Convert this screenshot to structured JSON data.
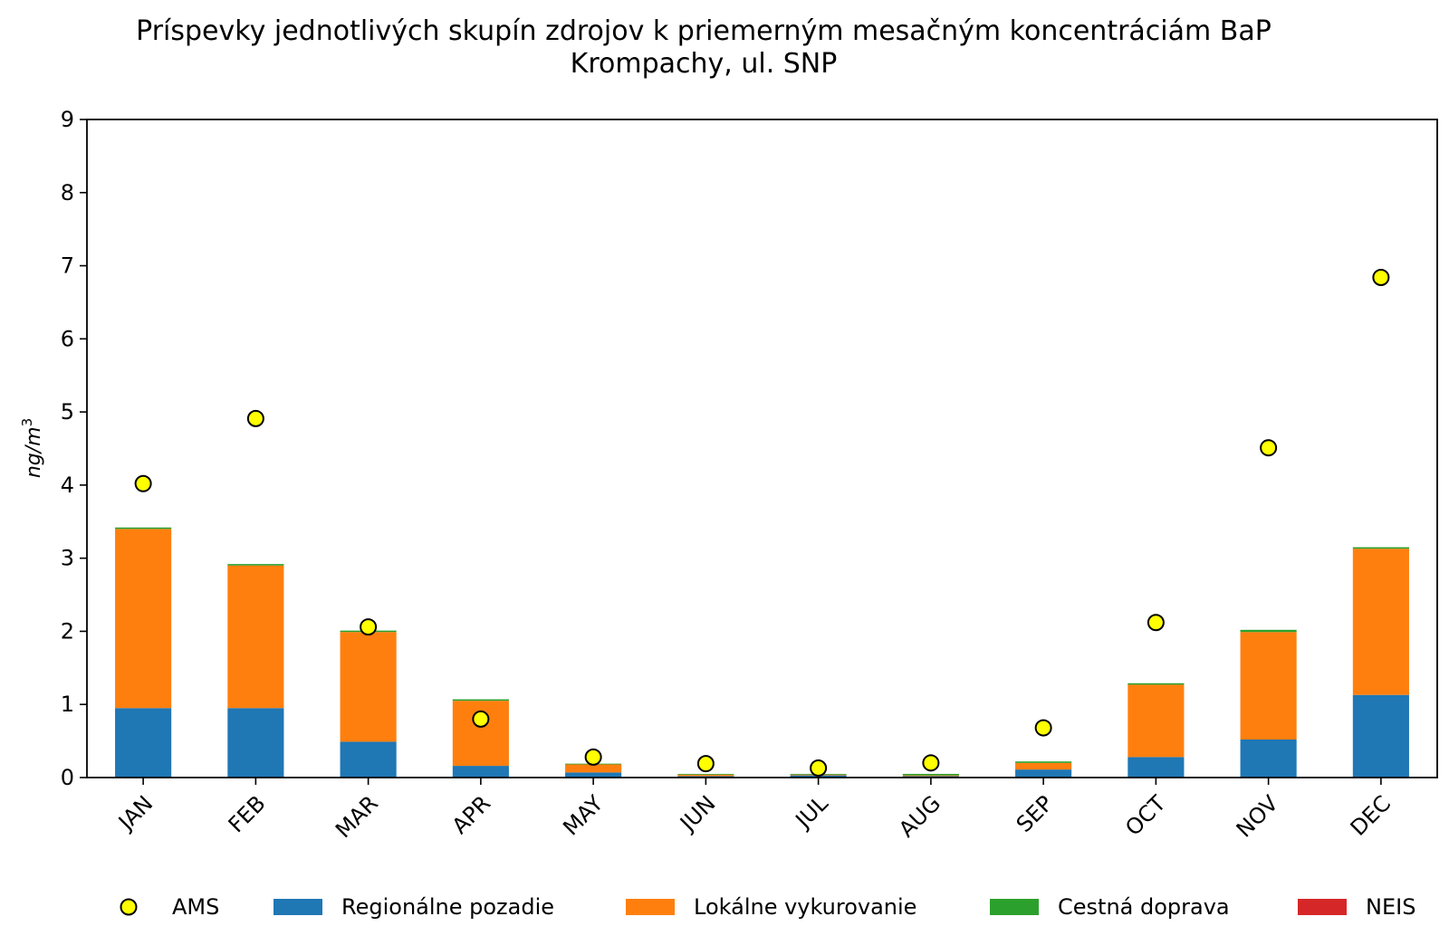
{
  "chart_data": {
    "type": "bar",
    "stacked": true,
    "title": "Príspevky jednotlivých skupín zdrojov k priemerným mesačným koncentráciám BaP",
    "subtitle": "Krompachy, ul. SNP",
    "xlabel": "",
    "ylabel": "ng/m",
    "ylabel_superscript": "3",
    "ylim": [
      0,
      9
    ],
    "yticks": [
      "0",
      "1",
      "2",
      "3",
      "4",
      "5",
      "6",
      "7",
      "8",
      "9"
    ],
    "categories": [
      "JAN",
      "FEB",
      "MAR",
      "APR",
      "MAY",
      "JUN",
      "JUL",
      "AUG",
      "SEP",
      "OCT",
      "NOV",
      "DEC"
    ],
    "series": [
      {
        "name": "Regionálne pozadie",
        "color": "#1f77b4",
        "values": [
          0.95,
          0.95,
          0.49,
          0.16,
          0.07,
          0.02,
          0.03,
          0.02,
          0.11,
          0.28,
          0.52,
          1.13
        ]
      },
      {
        "name": "Lokálne vykurovanie",
        "color": "#ff7f0e",
        "values": [
          2.45,
          1.95,
          1.5,
          0.89,
          0.11,
          0.02,
          0.01,
          0.01,
          0.09,
          0.99,
          1.47,
          2.0
        ]
      },
      {
        "name": "Cestná doprava",
        "color": "#2ca02c",
        "values": [
          0.02,
          0.02,
          0.02,
          0.02,
          0.01,
          0.01,
          0.01,
          0.02,
          0.02,
          0.02,
          0.03,
          0.02
        ]
      },
      {
        "name": "NEIS",
        "color": "#d62728",
        "values": [
          0,
          0,
          0,
          0,
          0,
          0,
          0,
          0,
          0,
          0,
          0,
          0
        ]
      }
    ],
    "points": {
      "name": "AMS",
      "color": "#ffff00",
      "edgecolor": "#000000",
      "values": [
        4.02,
        4.91,
        2.06,
        0.8,
        0.28,
        0.19,
        0.13,
        0.2,
        0.68,
        2.12,
        4.51,
        6.84
      ]
    },
    "legend_position": "bottom",
    "grid": false
  }
}
